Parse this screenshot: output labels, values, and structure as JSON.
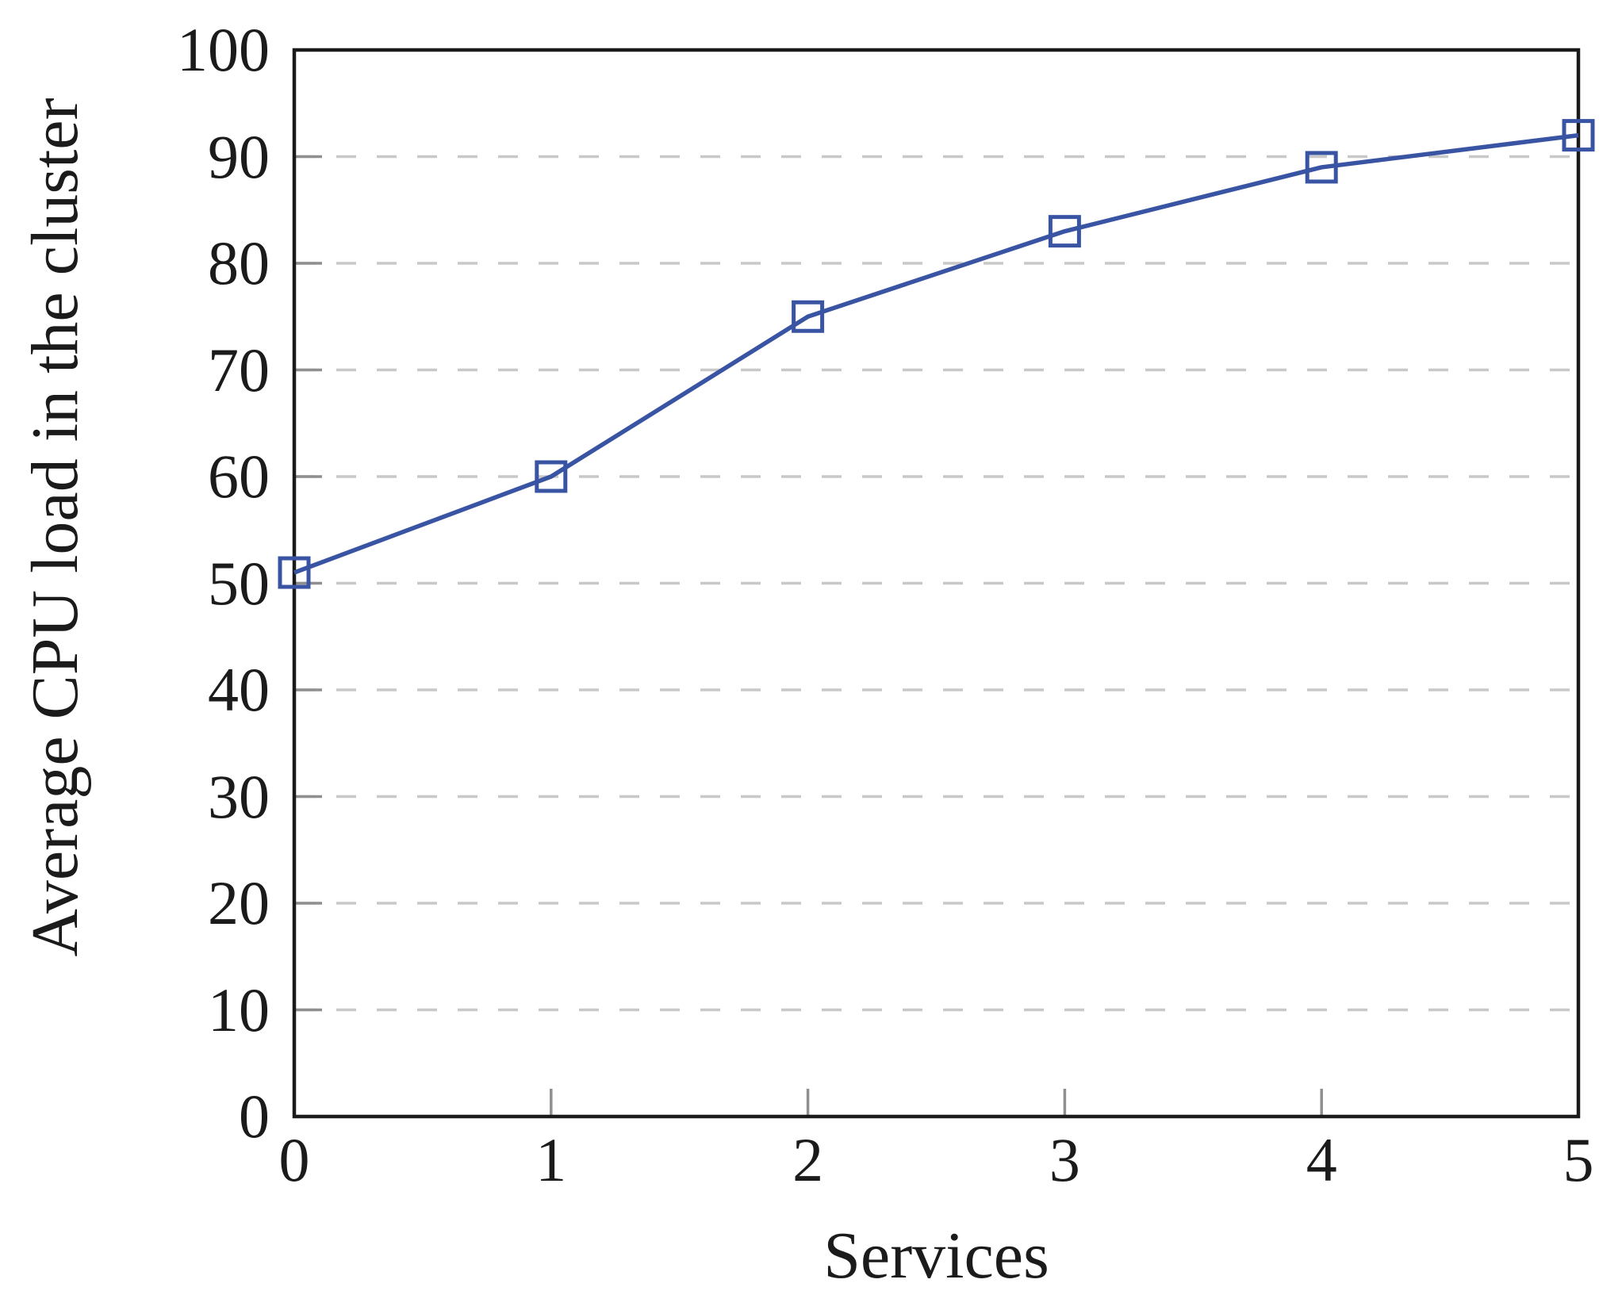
{
  "chart_data": {
    "type": "line",
    "title": "",
    "xlabel": "Services",
    "ylabel": "Average CPU load in the cluster",
    "x": [
      0,
      1,
      2,
      3,
      4,
      5
    ],
    "series": [
      {
        "name": "Average CPU load in the cluster",
        "values": [
          51,
          60,
          75,
          83,
          89,
          92
        ]
      }
    ],
    "xlim": [
      0,
      5
    ],
    "ylim": [
      0,
      100
    ],
    "xticks": [
      0,
      1,
      2,
      3,
      4,
      5
    ],
    "yticks": [
      0,
      10,
      20,
      30,
      40,
      50,
      60,
      70,
      80,
      90,
      100
    ],
    "grid": "horizontal-dashed",
    "gridlines_at": [
      10,
      20,
      30,
      40,
      50,
      60,
      70,
      80,
      90
    ],
    "legend": "none",
    "marker": "square-hollow",
    "colors": {
      "line": "#3a54a4",
      "marker": "#3a54a4",
      "grid": "#c8c8c8",
      "tick": "#8f8f8f",
      "frame": "#1a1a1a",
      "text": "#1b1b1b",
      "background": "#ffffff"
    }
  }
}
